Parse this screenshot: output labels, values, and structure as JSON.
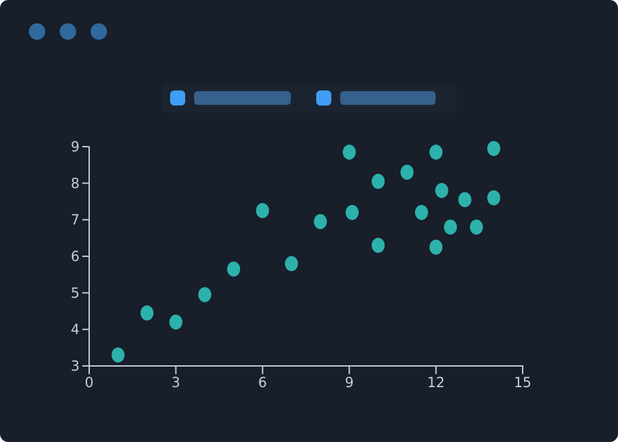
{
  "window": {
    "controls": [
      {
        "icon": "window-control-dot"
      },
      {
        "icon": "window-control-dot"
      },
      {
        "icon": "window-control-dot"
      }
    ],
    "dot_color": "#30699e"
  },
  "legend": {
    "items": [
      {
        "icon": "checkbox-swatch",
        "swatch_color": "#3f9df5",
        "bar_color": "#35618c",
        "label": ""
      },
      {
        "icon": "checkbox-swatch",
        "swatch_color": "#3f9df5",
        "bar_color": "#35618c",
        "label": ""
      }
    ],
    "strip_color": "#1c2330"
  },
  "chart_data": {
    "type": "scatter",
    "points": [
      [
        1,
        3.3
      ],
      [
        2,
        4.45
      ],
      [
        3,
        4.2
      ],
      [
        4,
        4.95
      ],
      [
        5,
        5.65
      ],
      [
        6,
        7.25
      ],
      [
        7,
        5.8
      ],
      [
        8,
        6.95
      ],
      [
        9,
        8.85
      ],
      [
        9.1,
        7.2
      ],
      [
        10,
        8.05
      ],
      [
        10,
        6.3
      ],
      [
        11,
        8.3
      ],
      [
        11.5,
        7.2
      ],
      [
        12,
        8.85
      ],
      [
        12.2,
        7.8
      ],
      [
        12,
        6.25
      ],
      [
        12.5,
        6.8
      ],
      [
        13,
        7.55
      ],
      [
        13.4,
        6.8
      ],
      [
        14,
        8.95
      ],
      [
        14,
        7.6
      ]
    ],
    "title": "",
    "xlabel": "",
    "ylabel": "",
    "xlim": [
      0,
      15
    ],
    "ylim": [
      3,
      9
    ],
    "xticks": [
      0,
      3,
      6,
      9,
      12,
      15
    ],
    "xtick_labels": [
      "0",
      "3",
      "6",
      "9",
      "12",
      "15"
    ],
    "yticks": [
      3,
      4,
      5,
      6,
      7,
      8,
      9
    ],
    "ytick_labels": [
      "3",
      "4",
      "5",
      "6",
      "7",
      "8",
      "9"
    ],
    "grid": false,
    "legend_position": "top",
    "point_color": "#2cb2ab",
    "axis_color": "#c3c8d2",
    "tick_label_color": "#c8ccd6"
  },
  "colors": {
    "card_background": "#181e2a",
    "accent_blue": "#3f9df5",
    "steel_blue": "#35618c",
    "teal": "#2cb2ab"
  }
}
